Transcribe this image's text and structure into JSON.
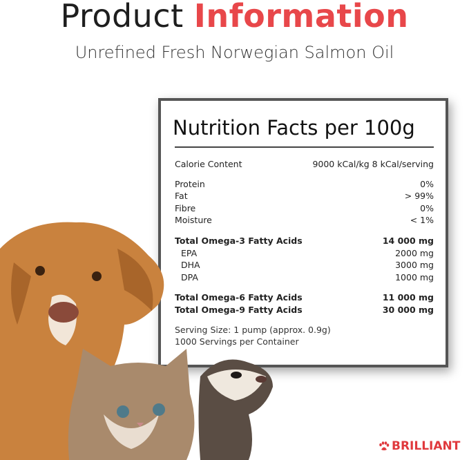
{
  "header": {
    "title_part1": "Product",
    "title_part2": "Information",
    "subtitle": "Unrefined Fresh Norwegian Salmon Oil"
  },
  "nutrition": {
    "title": "Nutrition Facts per 100g",
    "calorie": {
      "label": "Calorie Content",
      "value": "9000 kCal/kg 8 kCal/serving"
    },
    "basic": [
      {
        "label": "Protein",
        "value": "0%"
      },
      {
        "label": "Fat",
        "value": "> 99%"
      },
      {
        "label": "Fibre",
        "value": "0%"
      },
      {
        "label": "Moisture",
        "value": "< 1%"
      }
    ],
    "omega3": {
      "label": "Total Omega-3 Fatty Acids",
      "value": "14 000 mg"
    },
    "omega3_parts": [
      {
        "label": "EPA",
        "value": "2000 mg"
      },
      {
        "label": "DHA",
        "value": "3000 mg"
      },
      {
        "label": "DPA",
        "value": "1000 mg"
      }
    ],
    "omega6": {
      "label": "Total Omega-6 Fatty Acids",
      "value": "11 000 mg"
    },
    "omega9": {
      "label": "Total Omega-9 Fatty Acids",
      "value": "30 000 mg"
    },
    "serving_size": "Serving Size: 1 pump (approx. 0.9g)",
    "servings": "1000 Servings per Container"
  },
  "brand": {
    "name": "BRILLIANT",
    "icon": "paw-icon",
    "color": "#e0393d"
  },
  "colors": {
    "accent": "#e8474a",
    "panel_border": "#555555"
  }
}
